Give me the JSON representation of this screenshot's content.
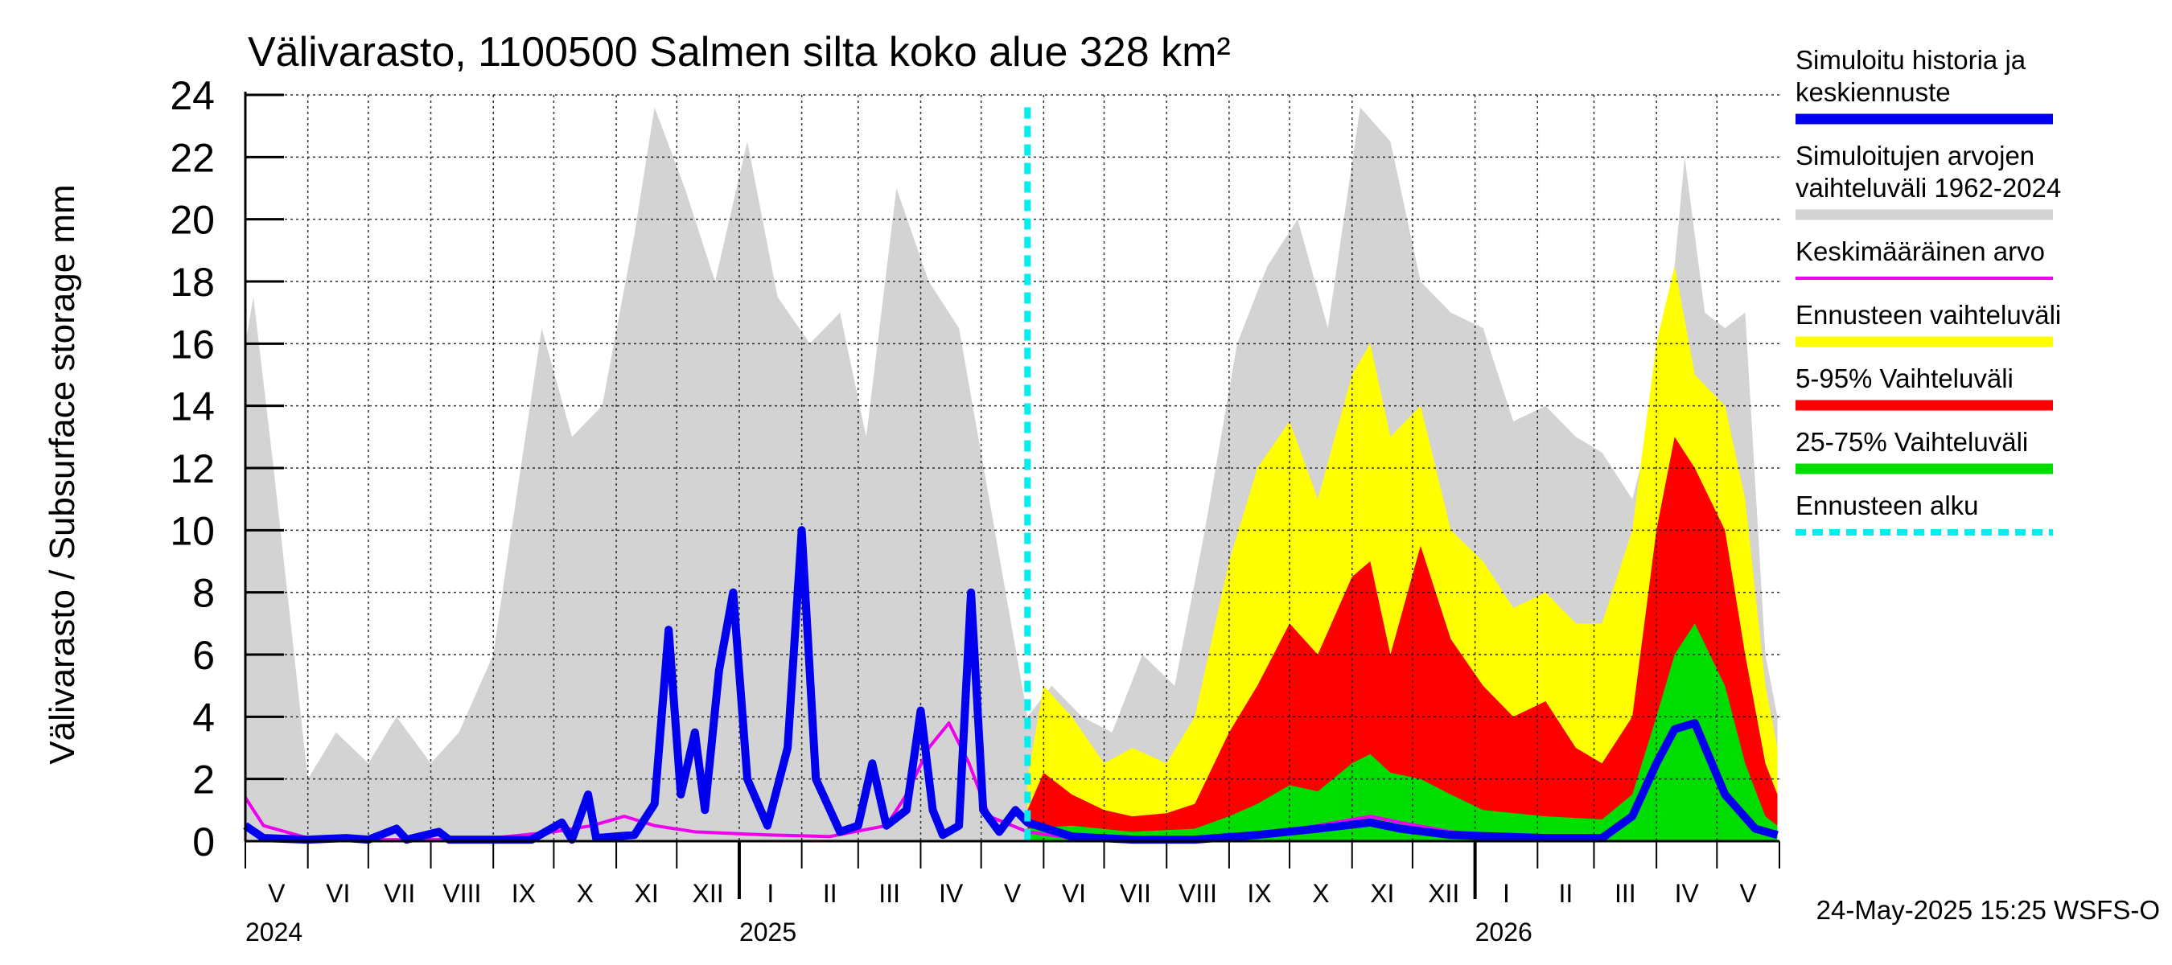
{
  "chart_data": {
    "type": "area",
    "title": "Välivarasto, 1100500 Salmen silta koko alue 328 km²",
    "ylabel": "Välivarasto / Subsurface storage  mm",
    "xlabel": "",
    "ylim": [
      0,
      24
    ],
    "yticks": [
      0,
      2,
      4,
      6,
      8,
      10,
      12,
      14,
      16,
      18,
      20,
      22,
      24
    ],
    "grid": true,
    "legend_position": "right",
    "x_start": "2024-05-01",
    "x_end": "2026-05-31",
    "forecast_start": "2025-05-24",
    "months": [
      "V",
      "VI",
      "VII",
      "VIII",
      "IX",
      "X",
      "XI",
      "XII",
      "I",
      "II",
      "III",
      "IV",
      "V",
      "VI",
      "VII",
      "VIII",
      "IX",
      "X",
      "XI",
      "XII",
      "I",
      "II",
      "III",
      "IV",
      "V"
    ],
    "years": [
      {
        "label": "2024",
        "date": "2024-05-01"
      },
      {
        "label": "2025",
        "date": "2025-01-01"
      },
      {
        "label": "2026",
        "date": "2026-01-01"
      }
    ],
    "footer": "24-May-2025 15:25 WSFS-O",
    "legend": [
      {
        "label": "Simuloitu historia ja keskiennuste",
        "color": "#0000ee",
        "style": "thick"
      },
      {
        "label": "Simuloitujen arvojen vaihteluväli 1962-2024",
        "color": "#d3d3d3",
        "style": "thick"
      },
      {
        "label": "Keskimääräinen arvo",
        "color": "#ee00ee",
        "style": "thin"
      },
      {
        "label": "Ennusteen vaihteluväli",
        "color": "#ffff00",
        "style": "thick"
      },
      {
        "label": "5-95% Vaihteluväli",
        "color": "#ff0000",
        "style": "thick"
      },
      {
        "label": "25-75% Vaihteluväli",
        "color": "#00dd00",
        "style": "thick"
      },
      {
        "label": "Ennusteen alku",
        "color": "#00eeee",
        "style": "dashed"
      }
    ],
    "series": [
      {
        "name": "Simuloitujen arvojen vaihteluväli 1962-2024",
        "color": "#d3d3d3",
        "points": [
          [
            "2024-05-01",
            16
          ],
          [
            "2024-05-05",
            17.5
          ],
          [
            "2024-05-15",
            12
          ],
          [
            "2024-06-01",
            2
          ],
          [
            "2024-06-15",
            3.5
          ],
          [
            "2024-07-01",
            2.5
          ],
          [
            "2024-07-15",
            4
          ],
          [
            "2024-08-01",
            2.5
          ],
          [
            "2024-08-15",
            3.5
          ],
          [
            "2024-09-01",
            6
          ],
          [
            "2024-09-10",
            10
          ],
          [
            "2024-09-25",
            16.5
          ],
          [
            "2024-10-10",
            13
          ],
          [
            "2024-10-25",
            14
          ],
          [
            "2024-11-10",
            19.5
          ],
          [
            "2024-11-20",
            23.6
          ],
          [
            "2024-12-05",
            21
          ],
          [
            "2024-12-20",
            18
          ],
          [
            "2025-01-05",
            22.5
          ],
          [
            "2025-01-20",
            17.5
          ],
          [
            "2025-02-05",
            16
          ],
          [
            "2025-02-20",
            17
          ],
          [
            "2025-03-05",
            13
          ],
          [
            "2025-03-20",
            21
          ],
          [
            "2025-04-05",
            18
          ],
          [
            "2025-04-20",
            16.5
          ],
          [
            "2025-05-05",
            11
          ],
          [
            "2025-05-24",
            4
          ],
          [
            "2025-06-05",
            5
          ],
          [
            "2025-06-20",
            4
          ],
          [
            "2025-07-05",
            3.5
          ],
          [
            "2025-07-20",
            6
          ],
          [
            "2025-08-05",
            5
          ],
          [
            "2025-08-20",
            10
          ],
          [
            "2025-09-05",
            16
          ],
          [
            "2025-09-20",
            18.5
          ],
          [
            "2025-10-05",
            20
          ],
          [
            "2025-10-20",
            16.5
          ],
          [
            "2025-11-05",
            23.6
          ],
          [
            "2025-11-20",
            22.5
          ],
          [
            "2025-12-05",
            18
          ],
          [
            "2025-12-20",
            17
          ],
          [
            "2026-01-05",
            16.5
          ],
          [
            "2026-01-20",
            13.5
          ],
          [
            "2026-02-05",
            14
          ],
          [
            "2026-02-20",
            13
          ],
          [
            "2026-03-05",
            12.5
          ],
          [
            "2026-03-20",
            11
          ],
          [
            "2026-04-05",
            15
          ],
          [
            "2026-04-15",
            22
          ],
          [
            "2026-04-25",
            17
          ],
          [
            "2026-05-05",
            16.5
          ],
          [
            "2026-05-15",
            17
          ],
          [
            "2026-05-25",
            6
          ],
          [
            "2026-05-31",
            4
          ]
        ]
      },
      {
        "name": "Ennusteen vaihteluväli",
        "color": "#ffff00",
        "points": [
          [
            "2025-05-24",
            2
          ],
          [
            "2025-06-01",
            5
          ],
          [
            "2025-06-15",
            4
          ],
          [
            "2025-07-01",
            2.5
          ],
          [
            "2025-07-15",
            3
          ],
          [
            "2025-08-01",
            2.5
          ],
          [
            "2025-08-15",
            4
          ],
          [
            "2025-09-01",
            9
          ],
          [
            "2025-09-15",
            12
          ],
          [
            "2025-10-01",
            13.5
          ],
          [
            "2025-10-15",
            11
          ],
          [
            "2025-11-01",
            15
          ],
          [
            "2025-11-10",
            16
          ],
          [
            "2025-11-20",
            13
          ],
          [
            "2025-12-05",
            14
          ],
          [
            "2025-12-20",
            10
          ],
          [
            "2026-01-05",
            9
          ],
          [
            "2026-01-20",
            7.5
          ],
          [
            "2026-02-05",
            8
          ],
          [
            "2026-02-20",
            7
          ],
          [
            "2026-03-05",
            7
          ],
          [
            "2026-03-20",
            10
          ],
          [
            "2026-04-01",
            16
          ],
          [
            "2026-04-10",
            18.5
          ],
          [
            "2026-04-20",
            15
          ],
          [
            "2026-05-05",
            14
          ],
          [
            "2026-05-15",
            11
          ],
          [
            "2026-05-25",
            5
          ],
          [
            "2026-05-31",
            3
          ]
        ]
      },
      {
        "name": "5-95% Vaihteluväli",
        "color": "#ff0000",
        "points": [
          [
            "2025-05-24",
            1
          ],
          [
            "2025-06-01",
            2.2
          ],
          [
            "2025-06-15",
            1.5
          ],
          [
            "2025-07-01",
            1
          ],
          [
            "2025-07-15",
            0.8
          ],
          [
            "2025-08-01",
            0.9
          ],
          [
            "2025-08-15",
            1.2
          ],
          [
            "2025-09-01",
            3.5
          ],
          [
            "2025-09-15",
            5
          ],
          [
            "2025-10-01",
            7
          ],
          [
            "2025-10-15",
            6
          ],
          [
            "2025-11-01",
            8.5
          ],
          [
            "2025-11-10",
            9
          ],
          [
            "2025-11-20",
            6
          ],
          [
            "2025-12-05",
            9.5
          ],
          [
            "2025-12-20",
            6.5
          ],
          [
            "2026-01-05",
            5
          ],
          [
            "2026-01-20",
            4
          ],
          [
            "2026-02-05",
            4.5
          ],
          [
            "2026-02-20",
            3
          ],
          [
            "2026-03-05",
            2.5
          ],
          [
            "2026-03-20",
            4
          ],
          [
            "2026-04-01",
            10
          ],
          [
            "2026-04-10",
            13
          ],
          [
            "2026-04-20",
            12
          ],
          [
            "2026-05-05",
            10
          ],
          [
            "2026-05-15",
            6
          ],
          [
            "2026-05-25",
            2.5
          ],
          [
            "2026-05-31",
            1.5
          ]
        ]
      },
      {
        "name": "25-75% Vaihteluväli",
        "color": "#00dd00",
        "points": [
          [
            "2025-05-24",
            0.4
          ],
          [
            "2025-06-15",
            0.5
          ],
          [
            "2025-07-15",
            0.3
          ],
          [
            "2025-08-15",
            0.4
          ],
          [
            "2025-09-01",
            0.8
          ],
          [
            "2025-09-15",
            1.2
          ],
          [
            "2025-10-01",
            1.8
          ],
          [
            "2025-10-15",
            1.6
          ],
          [
            "2025-11-01",
            2.5
          ],
          [
            "2025-11-10",
            2.8
          ],
          [
            "2025-11-20",
            2.2
          ],
          [
            "2025-12-05",
            2
          ],
          [
            "2025-12-20",
            1.5
          ],
          [
            "2026-01-05",
            1
          ],
          [
            "2026-02-05",
            0.8
          ],
          [
            "2026-03-05",
            0.7
          ],
          [
            "2026-03-20",
            1.5
          ],
          [
            "2026-04-01",
            4
          ],
          [
            "2026-04-10",
            6
          ],
          [
            "2026-04-20",
            7
          ],
          [
            "2026-05-05",
            5
          ],
          [
            "2026-05-15",
            2.5
          ],
          [
            "2026-05-25",
            0.8
          ],
          [
            "2026-05-31",
            0.5
          ]
        ]
      },
      {
        "name": "Keskimääräinen arvo",
        "color": "#ee00ee",
        "points": [
          [
            "2024-05-01",
            1.4
          ],
          [
            "2024-05-10",
            0.5
          ],
          [
            "2024-06-01",
            0.1
          ],
          [
            "2024-07-01",
            0.05
          ],
          [
            "2024-08-01",
            0.05
          ],
          [
            "2024-09-01",
            0.1
          ],
          [
            "2024-10-01",
            0.3
          ],
          [
            "2024-10-20",
            0.5
          ],
          [
            "2024-11-05",
            0.8
          ],
          [
            "2024-11-20",
            0.5
          ],
          [
            "2024-12-10",
            0.3
          ],
          [
            "2025-01-15",
            0.2
          ],
          [
            "2025-02-15",
            0.15
          ],
          [
            "2025-03-15",
            0.5
          ],
          [
            "2025-03-25",
            1.5
          ],
          [
            "2025-04-05",
            3
          ],
          [
            "2025-04-15",
            3.8
          ],
          [
            "2025-04-25",
            2.5
          ],
          [
            "2025-05-05",
            0.8
          ],
          [
            "2025-05-24",
            0.3
          ],
          [
            "2025-06-15",
            0.1
          ],
          [
            "2025-07-15",
            0.05
          ],
          [
            "2025-08-15",
            0.05
          ],
          [
            "2025-09-15",
            0.2
          ],
          [
            "2025-10-15",
            0.5
          ],
          [
            "2025-11-10",
            0.8
          ],
          [
            "2025-11-25",
            0.6
          ],
          [
            "2025-12-20",
            0.3
          ],
          [
            "2026-02-05",
            0.1
          ],
          [
            "2026-03-05",
            0.1
          ],
          [
            "2026-03-20",
            0.8
          ],
          [
            "2026-04-01",
            2.5
          ],
          [
            "2026-04-10",
            3.6
          ],
          [
            "2026-04-20",
            3.8
          ],
          [
            "2026-05-05",
            1.5
          ],
          [
            "2026-05-20",
            0.4
          ],
          [
            "2026-05-31",
            0.2
          ]
        ]
      },
      {
        "name": "Simuloitu historia ja keskiennuste",
        "color": "#0000ee",
        "points": [
          [
            "2024-05-01",
            0.5
          ],
          [
            "2024-05-10",
            0.1
          ],
          [
            "2024-06-01",
            0.05
          ],
          [
            "2024-06-20",
            0.1
          ],
          [
            "2024-07-01",
            0.05
          ],
          [
            "2024-07-15",
            0.4
          ],
          [
            "2024-07-20",
            0.05
          ],
          [
            "2024-08-05",
            0.3
          ],
          [
            "2024-08-10",
            0.05
          ],
          [
            "2024-09-01",
            0.05
          ],
          [
            "2024-09-20",
            0.05
          ],
          [
            "2024-10-05",
            0.6
          ],
          [
            "2024-10-10",
            0.05
          ],
          [
            "2024-10-18",
            1.5
          ],
          [
            "2024-10-22",
            0.1
          ],
          [
            "2024-11-10",
            0.2
          ],
          [
            "2024-11-20",
            1.2
          ],
          [
            "2024-11-27",
            6.8
          ],
          [
            "2024-12-03",
            1.5
          ],
          [
            "2024-12-10",
            3.5
          ],
          [
            "2024-12-15",
            1
          ],
          [
            "2024-12-22",
            5.5
          ],
          [
            "2024-12-29",
            8
          ],
          [
            "2025-01-05",
            2
          ],
          [
            "2025-01-15",
            0.5
          ],
          [
            "2025-01-25",
            3
          ],
          [
            "2025-02-01",
            10
          ],
          [
            "2025-02-08",
            2
          ],
          [
            "2025-02-20",
            0.3
          ],
          [
            "2025-03-01",
            0.5
          ],
          [
            "2025-03-08",
            2.5
          ],
          [
            "2025-03-15",
            0.5
          ],
          [
            "2025-03-25",
            1
          ],
          [
            "2025-04-01",
            4.2
          ],
          [
            "2025-04-07",
            1
          ],
          [
            "2025-04-12",
            0.2
          ],
          [
            "2025-04-20",
            0.5
          ],
          [
            "2025-04-26",
            8
          ],
          [
            "2025-05-02",
            1
          ],
          [
            "2025-05-10",
            0.3
          ],
          [
            "2025-05-18",
            1
          ],
          [
            "2025-05-24",
            0.6
          ],
          [
            "2025-06-15",
            0.15
          ],
          [
            "2025-07-15",
            0.05
          ],
          [
            "2025-08-15",
            0.05
          ],
          [
            "2025-09-15",
            0.2
          ],
          [
            "2025-10-15",
            0.4
          ],
          [
            "2025-11-10",
            0.6
          ],
          [
            "2025-11-25",
            0.4
          ],
          [
            "2025-12-20",
            0.2
          ],
          [
            "2026-02-05",
            0.1
          ],
          [
            "2026-03-05",
            0.1
          ],
          [
            "2026-03-20",
            0.8
          ],
          [
            "2026-04-01",
            2.5
          ],
          [
            "2026-04-10",
            3.6
          ],
          [
            "2026-04-20",
            3.8
          ],
          [
            "2026-05-05",
            1.5
          ],
          [
            "2026-05-20",
            0.4
          ],
          [
            "2026-05-31",
            0.2
          ]
        ]
      }
    ]
  }
}
